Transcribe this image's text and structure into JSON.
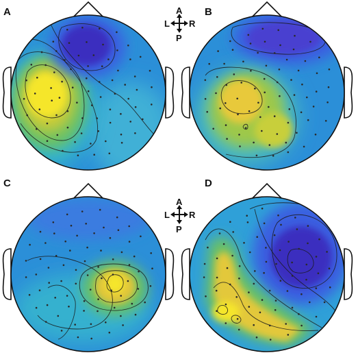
{
  "panels": [
    {
      "label": "A"
    },
    {
      "label": "B"
    },
    {
      "label": "C"
    },
    {
      "label": "D"
    }
  ],
  "orientation": {
    "anterior": "A",
    "posterior": "P",
    "left": "L",
    "right": "R"
  },
  "colors": {
    "background_blue": "#2b8fd8",
    "deep_blue": "#3a2fbf",
    "cyan": "#29b5d4",
    "green": "#7cc45a",
    "yellow": "#f5e62c",
    "outline": "#111111"
  },
  "colormap_name": "parula-like"
}
